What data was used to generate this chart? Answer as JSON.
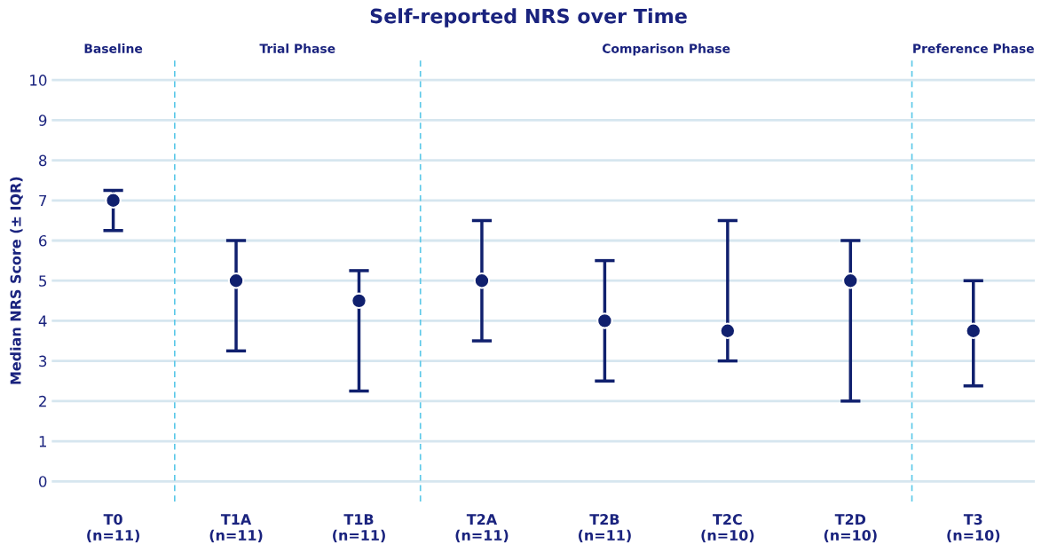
{
  "chart_data": {
    "type": "scatter",
    "title": "Self-reported NRS over Time",
    "ylabel": "Median NRS Score (± IQR)",
    "categories": [
      "T0\n(n=11)",
      "T1A\n(n=11)",
      "T1B\n(n=11)",
      "T2A\n(n=11)",
      "T2B\n(n=11)",
      "T2C\n(n=10)",
      "T2D\n(n=10)",
      "T3\n(n=10)"
    ],
    "values": [
      7,
      5,
      4.5,
      5,
      4,
      3.75,
      5,
      3.75
    ],
    "errors": [
      [
        6.25,
        7.25
      ],
      [
        3.25,
        6
      ],
      [
        2.25,
        5.25
      ],
      [
        3.5,
        6.5
      ],
      [
        2.5,
        5.5
      ],
      [
        3,
        6.5
      ],
      [
        2,
        6
      ],
      [
        2.38,
        5
      ]
    ],
    "color": "#10206e",
    "marker": "circle",
    "ylim": [
      -0.5,
      10.5
    ],
    "yticks": [
      0,
      1,
      2,
      3,
      4,
      5,
      6,
      7,
      8,
      9,
      10
    ],
    "grid": "y",
    "annotations": [
      "Baseline",
      "Trial Phase",
      "Comparison Phase",
      "Preference Phase"
    ]
  }
}
